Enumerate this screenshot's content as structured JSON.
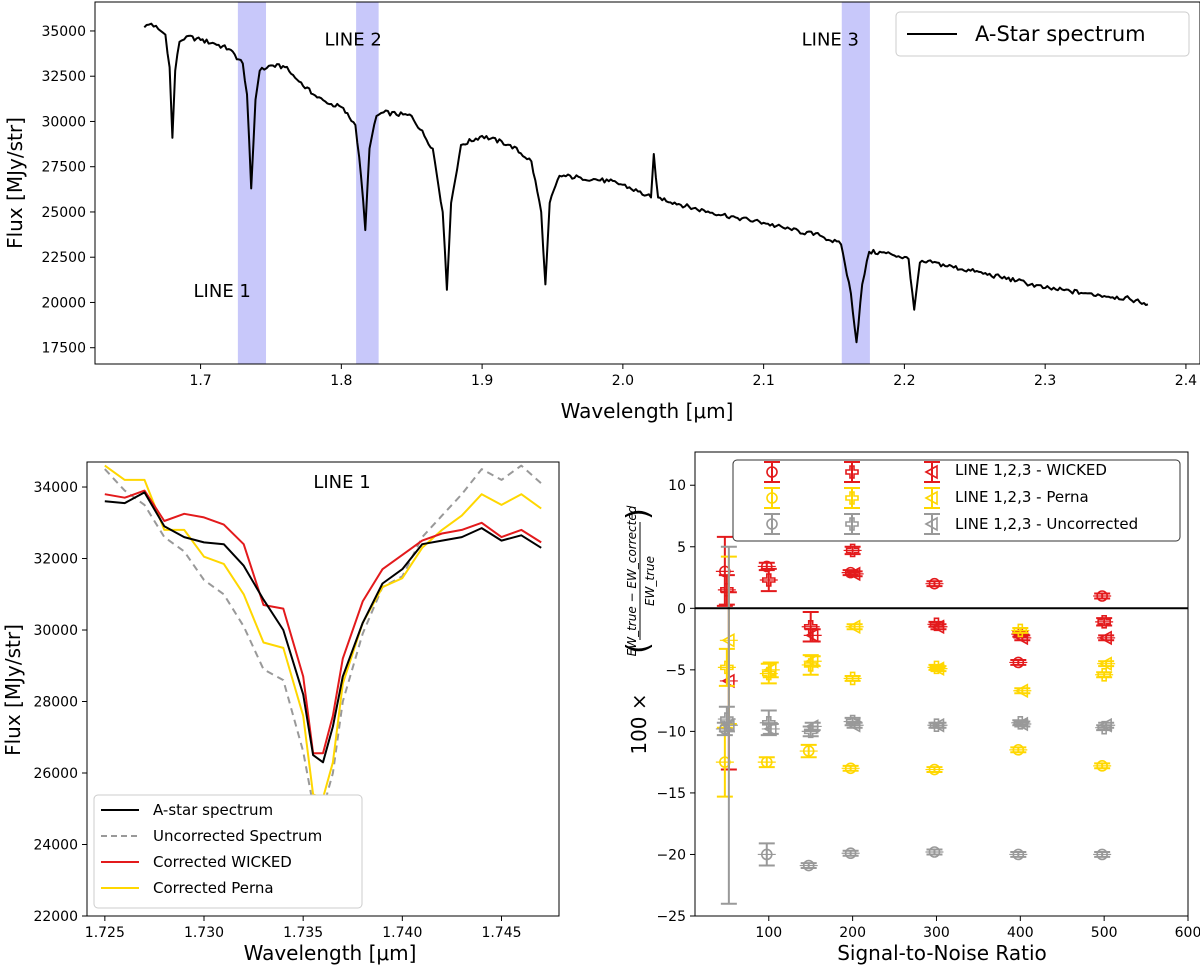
{
  "chart_data": [
    {
      "id": "top",
      "type": "line",
      "xlabel": "Wavelength [μm]",
      "ylabel": "Flux [MJy/str]",
      "xlim": [
        1.625,
        2.41
      ],
      "ylim": [
        16600,
        36600
      ],
      "xticks": [
        1.7,
        1.8,
        1.9,
        2.0,
        2.1,
        2.2,
        2.3,
        2.4
      ],
      "xtick_labels": [
        "1.7",
        "1.8",
        "1.9",
        "2.0",
        "2.1",
        "2.2",
        "2.3",
        "2.4"
      ],
      "yticks": [
        17500,
        20000,
        22500,
        25000,
        27500,
        30000,
        32500,
        35000
      ],
      "ytick_labels": [
        "17500",
        "20000",
        "22500",
        "25000",
        "27500",
        "30000",
        "32500",
        "35000"
      ],
      "legend_position": "top-right",
      "series": [
        {
          "name": "A-Star spectrum",
          "color": "#000000",
          "x": [
            1.66,
            1.665,
            1.67,
            1.675,
            1.678,
            1.68,
            1.682,
            1.685,
            1.69,
            1.7,
            1.71,
            1.72,
            1.73,
            1.733,
            1.736,
            1.739,
            1.742,
            1.75,
            1.76,
            1.77,
            1.78,
            1.79,
            1.8,
            1.81,
            1.814,
            1.817,
            1.82,
            1.825,
            1.83,
            1.85,
            1.865,
            1.872,
            1.875,
            1.878,
            1.885,
            1.9,
            1.92,
            1.935,
            1.942,
            1.945,
            1.948,
            1.955,
            1.97,
            1.99,
            2.0,
            2.02,
            2.022,
            2.025,
            2.05,
            2.08,
            2.1,
            2.12,
            2.14,
            2.155,
            2.162,
            2.166,
            2.17,
            2.175,
            2.19,
            2.203,
            2.207,
            2.211,
            2.22,
            2.25,
            2.28,
            2.3,
            2.33,
            2.36,
            2.373
          ],
          "y": [
            35200,
            35400,
            35100,
            34800,
            33000,
            29100,
            32800,
            34400,
            34700,
            34500,
            34300,
            34000,
            33200,
            31500,
            26300,
            31200,
            32800,
            33100,
            33000,
            32200,
            31500,
            31000,
            30800,
            29800,
            27000,
            24000,
            28500,
            30300,
            30500,
            30300,
            28500,
            25000,
            20700,
            25500,
            28700,
            29200,
            28700,
            27800,
            25000,
            21000,
            25500,
            27000,
            26900,
            26700,
            26500,
            25800,
            28200,
            25800,
            25200,
            24700,
            24400,
            24000,
            23700,
            23200,
            20500,
            17800,
            21000,
            22800,
            22700,
            22400,
            19600,
            22200,
            22200,
            21700,
            21200,
            20800,
            20500,
            20200,
            19900
          ]
        }
      ],
      "bands": [
        {
          "xmin": 1.7265,
          "xmax": 1.7465,
          "label": "LINE 1",
          "label_x": 1.695,
          "label_y": 20300
        },
        {
          "xmin": 1.8105,
          "xmax": 1.8265,
          "label": "LINE 2",
          "label_x": 1.788,
          "label_y": 34200
        },
        {
          "xmin": 2.1555,
          "xmax": 2.1755,
          "label": "LINE 3",
          "label_x": 2.127,
          "label_y": 34200
        }
      ],
      "band_color": "#c8c8fa"
    },
    {
      "id": "bl",
      "type": "line",
      "xlabel": "Wavelength [μm]",
      "ylabel": "Flux [MJy/str]",
      "xlim": [
        1.7241,
        1.7479
      ],
      "ylim": [
        22000,
        34700
      ],
      "xticks": [
        1.725,
        1.73,
        1.735,
        1.74,
        1.745
      ],
      "xtick_labels": [
        "1.725",
        "1.730",
        "1.735",
        "1.740",
        "1.745"
      ],
      "yticks": [
        22000,
        24000,
        26000,
        28000,
        30000,
        32000,
        34000
      ],
      "ytick_labels": [
        "22000",
        "24000",
        "26000",
        "28000",
        "30000",
        "32000",
        "34000"
      ],
      "annotation": {
        "text": "LINE 1",
        "x": 1.7357,
        "y": 34050
      },
      "legend_position": "lower-left",
      "series": [
        {
          "name": "A-star spectrum",
          "color": "#000000",
          "dashed": false,
          "x": [
            1.725,
            1.726,
            1.727,
            1.728,
            1.729,
            1.73,
            1.731,
            1.732,
            1.733,
            1.734,
            1.735,
            1.7355,
            1.736,
            1.7365,
            1.737,
            1.738,
            1.739,
            1.74,
            1.741,
            1.742,
            1.743,
            1.744,
            1.745,
            1.746,
            1.747
          ],
          "y": [
            33600,
            33550,
            33850,
            32900,
            32600,
            32450,
            32400,
            31800,
            30850,
            30000,
            28200,
            26500,
            26300,
            27300,
            28700,
            30200,
            31300,
            31700,
            32400,
            32500,
            32600,
            32850,
            32500,
            32650,
            32300
          ]
        },
        {
          "name": "Uncorrected Spectrum",
          "color": "#999999",
          "dashed": true,
          "x": [
            1.725,
            1.726,
            1.727,
            1.728,
            1.729,
            1.73,
            1.731,
            1.732,
            1.733,
            1.734,
            1.735,
            1.7355,
            1.736,
            1.7365,
            1.737,
            1.738,
            1.739,
            1.74,
            1.741,
            1.742,
            1.743,
            1.744,
            1.745,
            1.746,
            1.747
          ],
          "y": [
            34500,
            33900,
            33500,
            32600,
            32200,
            31400,
            31000,
            30100,
            28900,
            28600,
            26600,
            25100,
            25000,
            26000,
            28000,
            29900,
            31200,
            31500,
            32600,
            33200,
            33800,
            34500,
            34200,
            34600,
            34100
          ]
        },
        {
          "name": "Corrected WICKED",
          "color": "#e31a1c",
          "dashed": false,
          "x": [
            1.725,
            1.726,
            1.727,
            1.728,
            1.729,
            1.73,
            1.731,
            1.732,
            1.733,
            1.734,
            1.735,
            1.7355,
            1.736,
            1.7365,
            1.737,
            1.738,
            1.739,
            1.74,
            1.741,
            1.742,
            1.743,
            1.744,
            1.745,
            1.746,
            1.747
          ],
          "y": [
            33800,
            33700,
            33900,
            33050,
            33250,
            33150,
            32950,
            32400,
            30700,
            30600,
            28700,
            26550,
            26550,
            27600,
            29200,
            30800,
            31700,
            32100,
            32500,
            32700,
            32800,
            33000,
            32600,
            32800,
            32450
          ]
        },
        {
          "name": "Corrected Perna",
          "color": "#ffd700",
          "dashed": false,
          "x": [
            1.725,
            1.726,
            1.727,
            1.728,
            1.729,
            1.73,
            1.731,
            1.732,
            1.733,
            1.734,
            1.735,
            1.7355,
            1.736,
            1.7365,
            1.737,
            1.738,
            1.739,
            1.74,
            1.741,
            1.742,
            1.743,
            1.744,
            1.745,
            1.746,
            1.747
          ],
          "y": [
            34600,
            34200,
            34200,
            32800,
            32800,
            32050,
            31850,
            31000,
            29650,
            29500,
            27600,
            25400,
            25300,
            26300,
            28500,
            30200,
            31200,
            31450,
            32300,
            32800,
            33200,
            33800,
            33500,
            33800,
            33400
          ]
        }
      ]
    },
    {
      "id": "br",
      "type": "scatter",
      "xlabel": "Signal-to-Noise Ratio",
      "ylabel_main": "100 ×",
      "ylabel_num": "EW_true − EW_corrected",
      "ylabel_den": "EW_true",
      "xlim": [
        12,
        600
      ],
      "ylim": [
        -25,
        12.7
      ],
      "xticks": [
        100,
        200,
        300,
        400,
        500,
        600
      ],
      "xtick_labels": [
        "100",
        "200",
        "300",
        "400",
        "500",
        "600"
      ],
      "yticks": [
        -25,
        -20,
        -15,
        -10,
        -5,
        0,
        5,
        10
      ],
      "ytick_labels": [
        "−25",
        "−20",
        "−15",
        "−10",
        "−5",
        "0",
        "5",
        "10"
      ],
      "zero_line": true,
      "legend_position": "top-right",
      "legend": [
        {
          "label": "LINE 1,2,3 - WICKED",
          "color": "#e31a1c"
        },
        {
          "label": "LINE 1,2,3 - Perna",
          "color": "#ffd700"
        },
        {
          "label": "LINE 1,2,3 - Uncorrected",
          "color": "#999999"
        }
      ],
      "points": [
        {
          "x": 50,
          "y": 3.0,
          "err": 2.8,
          "marker": "o",
          "color": "#e31a1c"
        },
        {
          "x": 50,
          "y": 1.5,
          "err": 1.2,
          "marker": "+",
          "color": "#e31a1c"
        },
        {
          "x": 50,
          "y": -5.9,
          "err": 7.2,
          "marker": "<",
          "color": "#e31a1c"
        },
        {
          "x": 50,
          "y": -12.5,
          "err": 2.8,
          "marker": "o",
          "color": "#ffd700"
        },
        {
          "x": 50,
          "y": -4.8,
          "err": 1.5,
          "marker": "+",
          "color": "#ffd700"
        },
        {
          "x": 50,
          "y": -2.6,
          "err": 6.8,
          "marker": "<",
          "color": "#ffd700"
        },
        {
          "x": 50,
          "y": -9.8,
          "err": 0.5,
          "marker": "o",
          "color": "#999999"
        },
        {
          "x": 50,
          "y": -9.0,
          "err": 1.0,
          "marker": "+",
          "color": "#999999"
        },
        {
          "x": 50,
          "y": -9.5,
          "err": 14.5,
          "marker": "<",
          "color": "#999999"
        },
        {
          "x": 100,
          "y": 3.4,
          "err": 0.3,
          "marker": "o",
          "color": "#e31a1c"
        },
        {
          "x": 100,
          "y": 2.3,
          "err": 0.9,
          "marker": "+",
          "color": "#e31a1c"
        },
        {
          "x": 100,
          "y": -12.5,
          "err": 0.4,
          "marker": "o",
          "color": "#ffd700"
        },
        {
          "x": 100,
          "y": -5.3,
          "err": 0.8,
          "marker": "+",
          "color": "#ffd700"
        },
        {
          "x": 100,
          "y": -5.0,
          "err": 0.6,
          "marker": "<",
          "color": "#ffd700"
        },
        {
          "x": 100,
          "y": -20.0,
          "err": 0.9,
          "marker": "o",
          "color": "#999999"
        },
        {
          "x": 100,
          "y": -9.3,
          "err": 1.0,
          "marker": "+",
          "color": "#999999"
        },
        {
          "x": 100,
          "y": -9.8,
          "err": 0.4,
          "marker": "<",
          "color": "#999999"
        },
        {
          "x": 150,
          "y": -1.5,
          "err": 1.2,
          "marker": "+",
          "color": "#e31a1c"
        },
        {
          "x": 150,
          "y": -2.2,
          "err": 0.5,
          "marker": "<",
          "color": "#e31a1c"
        },
        {
          "x": 150,
          "y": -11.6,
          "err": 0.5,
          "marker": "o",
          "color": "#ffd700"
        },
        {
          "x": 150,
          "y": -4.6,
          "err": 0.8,
          "marker": "+",
          "color": "#ffd700"
        },
        {
          "x": 150,
          "y": -4.3,
          "err": 0.4,
          "marker": "<",
          "color": "#ffd700"
        },
        {
          "x": 150,
          "y": -20.9,
          "err": 0.2,
          "marker": "o",
          "color": "#999999"
        },
        {
          "x": 150,
          "y": -10.0,
          "err": 0.4,
          "marker": "+",
          "color": "#999999"
        },
        {
          "x": 150,
          "y": -9.6,
          "err": 0.3,
          "marker": "<",
          "color": "#999999"
        },
        {
          "x": 200,
          "y": 2.9,
          "err": 0.2,
          "marker": "o",
          "color": "#e31a1c"
        },
        {
          "x": 200,
          "y": 4.7,
          "err": 0.3,
          "marker": "+",
          "color": "#e31a1c"
        },
        {
          "x": 200,
          "y": 2.8,
          "err": 0.2,
          "marker": "<",
          "color": "#e31a1c"
        },
        {
          "x": 200,
          "y": -13.0,
          "err": 0.2,
          "marker": "o",
          "color": "#ffd700"
        },
        {
          "x": 200,
          "y": -5.7,
          "err": 0.2,
          "marker": "+",
          "color": "#ffd700"
        },
        {
          "x": 200,
          "y": -1.5,
          "err": 0.2,
          "marker": "<",
          "color": "#ffd700"
        },
        {
          "x": 200,
          "y": -19.9,
          "err": 0.2,
          "marker": "o",
          "color": "#999999"
        },
        {
          "x": 200,
          "y": -9.2,
          "err": 0.3,
          "marker": "+",
          "color": "#999999"
        },
        {
          "x": 200,
          "y": -9.5,
          "err": 0.2,
          "marker": "<",
          "color": "#999999"
        },
        {
          "x": 300,
          "y": 2.0,
          "err": 0.2,
          "marker": "o",
          "color": "#e31a1c"
        },
        {
          "x": 300,
          "y": -1.3,
          "err": 0.2,
          "marker": "+",
          "color": "#e31a1c"
        },
        {
          "x": 300,
          "y": -1.5,
          "err": 0.2,
          "marker": "<",
          "color": "#e31a1c"
        },
        {
          "x": 300,
          "y": -13.1,
          "err": 0.2,
          "marker": "o",
          "color": "#ffd700"
        },
        {
          "x": 300,
          "y": -4.8,
          "err": 0.2,
          "marker": "+",
          "color": "#ffd700"
        },
        {
          "x": 300,
          "y": -4.9,
          "err": 0.2,
          "marker": "<",
          "color": "#ffd700"
        },
        {
          "x": 300,
          "y": -19.8,
          "err": 0.2,
          "marker": "o",
          "color": "#999999"
        },
        {
          "x": 300,
          "y": -9.5,
          "err": 0.2,
          "marker": "+",
          "color": "#999999"
        },
        {
          "x": 300,
          "y": -9.5,
          "err": 0.2,
          "marker": "<",
          "color": "#999999"
        },
        {
          "x": 400,
          "y": -4.4,
          "err": 0.2,
          "marker": "o",
          "color": "#e31a1c"
        },
        {
          "x": 400,
          "y": -2.1,
          "err": 0.2,
          "marker": "+",
          "color": "#e31a1c"
        },
        {
          "x": 400,
          "y": -2.4,
          "err": 0.2,
          "marker": "<",
          "color": "#e31a1c"
        },
        {
          "x": 400,
          "y": -11.5,
          "err": 0.2,
          "marker": "o",
          "color": "#ffd700"
        },
        {
          "x": 400,
          "y": -1.8,
          "err": 0.2,
          "marker": "+",
          "color": "#ffd700"
        },
        {
          "x": 400,
          "y": -6.7,
          "err": 0.2,
          "marker": "<",
          "color": "#ffd700"
        },
        {
          "x": 400,
          "y": -20.0,
          "err": 0.2,
          "marker": "o",
          "color": "#999999"
        },
        {
          "x": 400,
          "y": -9.3,
          "err": 0.2,
          "marker": "+",
          "color": "#999999"
        },
        {
          "x": 400,
          "y": -9.4,
          "err": 0.2,
          "marker": "<",
          "color": "#999999"
        },
        {
          "x": 500,
          "y": 1.0,
          "err": 0.2,
          "marker": "o",
          "color": "#e31a1c"
        },
        {
          "x": 500,
          "y": -1.1,
          "err": 0.3,
          "marker": "+",
          "color": "#e31a1c"
        },
        {
          "x": 500,
          "y": -2.4,
          "err": 0.2,
          "marker": "<",
          "color": "#e31a1c"
        },
        {
          "x": 500,
          "y": -12.8,
          "err": 0.2,
          "marker": "o",
          "color": "#ffd700"
        },
        {
          "x": 500,
          "y": -5.4,
          "err": 0.2,
          "marker": "+",
          "color": "#ffd700"
        },
        {
          "x": 500,
          "y": -4.5,
          "err": 0.2,
          "marker": "<",
          "color": "#ffd700"
        },
        {
          "x": 500,
          "y": -20.0,
          "err": 0.2,
          "marker": "o",
          "color": "#999999"
        },
        {
          "x": 500,
          "y": -9.7,
          "err": 0.2,
          "marker": "+",
          "color": "#999999"
        },
        {
          "x": 500,
          "y": -9.5,
          "err": 0.2,
          "marker": "<",
          "color": "#999999"
        }
      ]
    }
  ]
}
